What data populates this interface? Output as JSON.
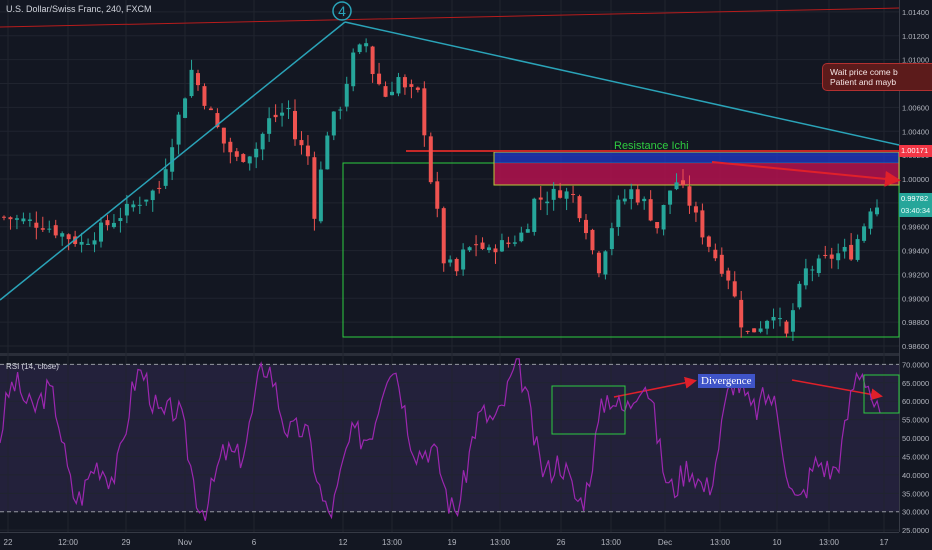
{
  "header": {
    "symbol_line": "U.S. Dollar/Swiss Franc, 240, FXCM",
    "rsi_line": "RSI (14, close)"
  },
  "annotations": {
    "wave_label": "4",
    "resistance_label": "Resistance Ichi",
    "divergence_label": "Divergence",
    "note_line1": "Wait price come b",
    "note_line2": "Patient and mayb"
  },
  "price_labels": {
    "resistance_price": "1.00171",
    "last_price": "0.99782",
    "countdown": "03:40:34"
  },
  "colors": {
    "background": "#131722",
    "up_candle": "#26a69a",
    "down_candle": "#ef5350",
    "trendline": "#2aa3b8",
    "rsi_line": "#9c27b0",
    "resistance_zone": "#b3124e",
    "box_green": "#2ecc40",
    "arrow_red": "#e0202a"
  },
  "chart_data": [
    {
      "type": "candlestick",
      "title": "U.S. Dollar/Swiss Franc, 240, FXCM",
      "x_tick_labels": [
        "22",
        "12:00",
        "29",
        "Nov",
        "6",
        "12",
        "13:00",
        "19",
        "13:00",
        "26",
        "13:00",
        "Dec",
        "13:00",
        "10",
        "13:00",
        "17"
      ],
      "y_tick_labels": [
        "1.01400",
        "1.01200",
        "1.01000",
        "1.00800",
        "1.00600",
        "1.00400",
        "1.00200",
        "1.00000",
        "0.99800",
        "0.99600",
        "0.99400",
        "0.99200",
        "0.99000",
        "0.98800",
        "0.98600"
      ],
      "ylim": [
        0.9855,
        1.015
      ],
      "close_path": [
        [
          0,
          0.9968
        ],
        [
          6,
          0.9962
        ],
        [
          12,
          0.9946
        ],
        [
          17,
          0.9966
        ],
        [
          20,
          0.9978
        ],
        [
          24,
          0.9993
        ],
        [
          27,
          1.0052
        ],
        [
          29,
          1.0091
        ],
        [
          33,
          1.0042
        ],
        [
          34,
          1.003
        ],
        [
          36,
          1.0016
        ],
        [
          39,
          1.0026
        ],
        [
          41,
          1.0049
        ],
        [
          44,
          1.0059
        ],
        [
          45,
          1.0034
        ],
        [
          47,
          1.0019
        ],
        [
          48,
          0.9972
        ],
        [
          50,
          1.004
        ],
        [
          52,
          1.0062
        ],
        [
          54,
          1.0102
        ],
        [
          56,
          1.0114
        ],
        [
          57,
          1.009
        ],
        [
          59,
          1.007
        ],
        [
          61,
          1.0085
        ],
        [
          62,
          1.0074
        ],
        [
          64,
          1.0071
        ],
        [
          65,
          1.0041
        ],
        [
          66,
          1.0
        ],
        [
          67,
          0.997
        ],
        [
          68,
          0.9932
        ],
        [
          70,
          0.9922
        ],
        [
          71,
          0.9937
        ],
        [
          73,
          0.9946
        ],
        [
          75,
          0.9938
        ],
        [
          76,
          0.9944
        ],
        [
          78,
          0.9946
        ],
        [
          80,
          0.9954
        ],
        [
          81,
          0.9964
        ],
        [
          82,
          0.9982
        ],
        [
          84,
          0.9985
        ],
        [
          86,
          0.999
        ],
        [
          88,
          0.9986
        ],
        [
          90,
          0.996
        ],
        [
          91,
          0.994
        ],
        [
          92,
          0.9926
        ],
        [
          93,
          0.9944
        ],
        [
          95,
          0.9978
        ],
        [
          97,
          0.999
        ],
        [
          99,
          0.998
        ],
        [
          101,
          0.996
        ],
        [
          103,
          0.9991
        ],
        [
          104,
          0.9998
        ],
        [
          106,
          0.998
        ],
        [
          108,
          0.9955
        ],
        [
          110,
          0.9935
        ],
        [
          112,
          0.9918
        ],
        [
          113,
          0.99
        ],
        [
          114,
          0.988
        ],
        [
          115,
          0.987
        ],
        [
          117,
          0.9878
        ],
        [
          119,
          0.989
        ],
        [
          120,
          0.9878
        ],
        [
          121,
          0.9868
        ],
        [
          122,
          0.989
        ],
        [
          124,
          0.9923
        ],
        [
          126,
          0.9928
        ],
        [
          128,
          0.9935
        ],
        [
          130,
          0.9939
        ],
        [
          131,
          0.9938
        ],
        [
          133,
          0.9962
        ],
        [
          134,
          0.9977
        ],
        [
          135,
          0.9978
        ]
      ]
    },
    {
      "type": "line",
      "title": "RSI (14, close)",
      "y_tick_labels": [
        "70.0000",
        "65.0000",
        "60.0000",
        "55.0000",
        "50.0000",
        "45.0000",
        "40.0000",
        "35.0000",
        "30.0000",
        "25.0000"
      ],
      "ylim": [
        24.5,
        72.0
      ],
      "levels": [
        70,
        30
      ]
    }
  ]
}
